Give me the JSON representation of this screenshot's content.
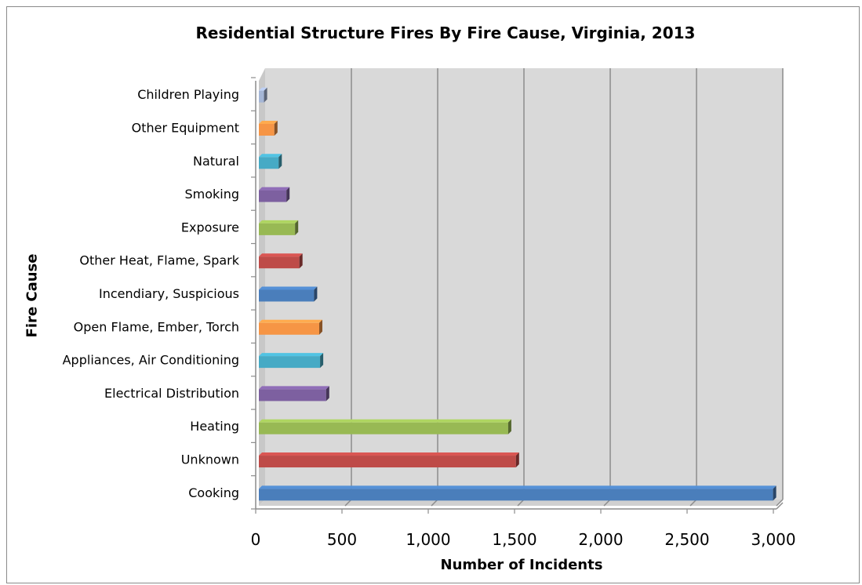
{
  "chart_data": {
    "type": "bar",
    "orientation": "horizontal",
    "style": "3d",
    "title": "Residential Structure Fires By Fire Cause, Virginia, 2013",
    "xlabel": "Number of Incidents",
    "ylabel": "Fire Cause",
    "xlim": [
      0,
      3000
    ],
    "x_ticks": [
      "0",
      "500",
      "1,000",
      "1,500",
      "2,000",
      "2,500",
      "3,000"
    ],
    "x_tick_values": [
      0,
      500,
      1000,
      1500,
      2000,
      2500,
      3000
    ],
    "grid": true,
    "legend": "none",
    "categories": [
      "Cooking",
      "Unknown",
      "Heating",
      "Electrical Distribution",
      "Appliances, Air Conditioning",
      "Open Flame, Ember, Torch",
      "Incendiary, Suspicious",
      "Other Heat, Flame, Spark",
      "Exposure",
      "Smoking",
      "Natural",
      "Other Equipment",
      "Children Playing"
    ],
    "values": [
      2980,
      1490,
      1445,
      390,
      355,
      350,
      320,
      235,
      210,
      160,
      115,
      90,
      30
    ],
    "colors": [
      "#4a7ebb",
      "#be4b48",
      "#98b954",
      "#7d60a0",
      "#46aac5",
      "#f69545",
      "#4a7ebb",
      "#be4b48",
      "#98b954",
      "#7d60a0",
      "#46aac5",
      "#f69545",
      "#a5b6d6"
    ]
  }
}
